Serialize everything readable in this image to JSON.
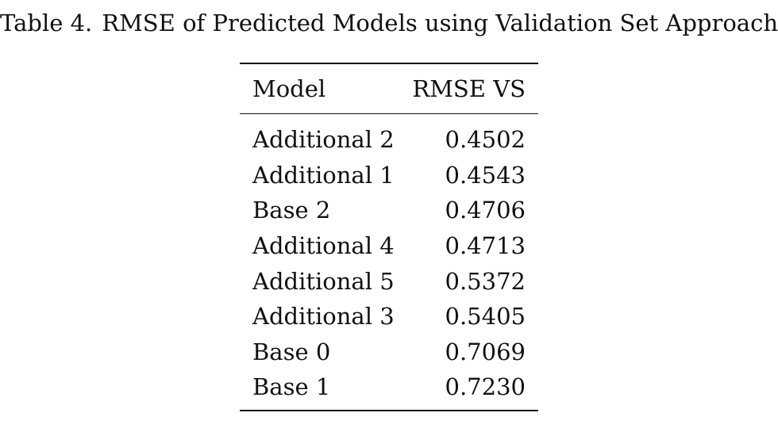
{
  "caption": {
    "label": "Table 4.",
    "text": "RMSE of Predicted Models using Validation Set Approach."
  },
  "table": {
    "headers": {
      "model": "Model",
      "rmse": "RMSE VS"
    },
    "rows": [
      {
        "model": "Additional 2",
        "rmse": "0.4502"
      },
      {
        "model": "Additional 1",
        "rmse": "0.4543"
      },
      {
        "model": "Base 2",
        "rmse": "0.4706"
      },
      {
        "model": "Additional 4",
        "rmse": "0.4713"
      },
      {
        "model": "Additional 5",
        "rmse": "0.5372"
      },
      {
        "model": "Additional 3",
        "rmse": "0.5405"
      },
      {
        "model": "Base 0",
        "rmse": "0.7069"
      },
      {
        "model": "Base 1",
        "rmse": "0.7230"
      }
    ]
  }
}
